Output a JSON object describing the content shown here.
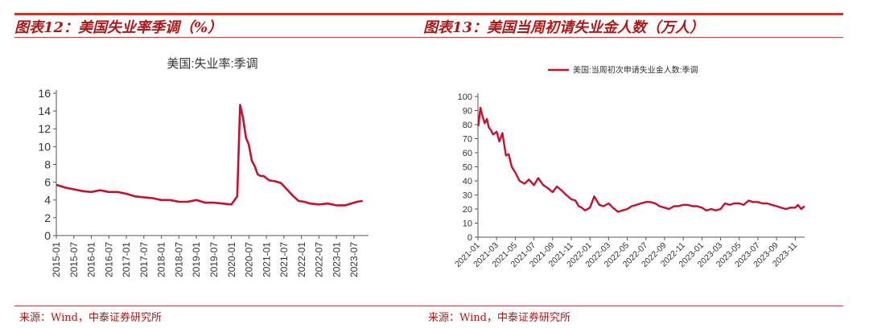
{
  "left": {
    "title": "图表12：美国失业率季调（%）",
    "source": "来源：Wind，中泰证券研究所",
    "chart_data": {
      "type": "line",
      "title": "美国:失业率:季调",
      "xlabel": "",
      "ylabel": "",
      "ylim": [
        0,
        16
      ],
      "yticks": [
        0,
        2,
        4,
        6,
        8,
        10,
        12,
        14,
        16
      ],
      "xlim": [
        "2015-01",
        "2023-12"
      ],
      "xticks": [
        "2015-01",
        "2015-07",
        "2016-01",
        "2016-07",
        "2017-01",
        "2017-07",
        "2018-01",
        "2018-07",
        "2019-01",
        "2019-07",
        "2020-01",
        "2020-07",
        "2021-01",
        "2021-07",
        "2022-01",
        "2022-07",
        "2023-01",
        "2023-07"
      ],
      "grid": false,
      "legend": "none",
      "color": "#c8102e",
      "series": [
        {
          "name": "",
          "x": [
            "2015-01",
            "2015-04",
            "2015-07",
            "2015-10",
            "2016-01",
            "2016-04",
            "2016-07",
            "2016-10",
            "2017-01",
            "2017-04",
            "2017-07",
            "2017-10",
            "2018-01",
            "2018-04",
            "2018-07",
            "2018-10",
            "2019-01",
            "2019-04",
            "2019-07",
            "2019-10",
            "2020-01",
            "2020-03",
            "2020-04",
            "2020-05",
            "2020-06",
            "2020-07",
            "2020-08",
            "2020-09",
            "2020-10",
            "2020-11",
            "2020-12",
            "2021-02",
            "2021-04",
            "2021-06",
            "2021-08",
            "2021-10",
            "2021-12",
            "2022-02",
            "2022-04",
            "2022-07",
            "2022-10",
            "2023-01",
            "2023-04",
            "2023-06",
            "2023-08",
            "2023-10"
          ],
          "y": [
            5.7,
            5.4,
            5.2,
            5.0,
            4.9,
            5.1,
            4.9,
            4.9,
            4.7,
            4.4,
            4.3,
            4.2,
            4.0,
            4.0,
            3.8,
            3.8,
            4.0,
            3.7,
            3.7,
            3.6,
            3.5,
            4.4,
            14.7,
            13.2,
            11.0,
            10.2,
            8.4,
            7.8,
            6.9,
            6.7,
            6.7,
            6.2,
            6.1,
            5.9,
            5.2,
            4.5,
            3.9,
            3.8,
            3.6,
            3.5,
            3.6,
            3.4,
            3.4,
            3.6,
            3.8,
            3.9
          ]
        }
      ]
    }
  },
  "right": {
    "title": "图表13：美国当周初请失业金人数（万人）",
    "source": "来源：Wind，中泰证券研究所",
    "chart_data": {
      "type": "line",
      "title": "",
      "xlabel": "",
      "ylabel": "",
      "ylim": [
        0,
        100
      ],
      "yticks": [
        0,
        10,
        20,
        30,
        40,
        50,
        60,
        70,
        80,
        90,
        100
      ],
      "xlim": [
        "2021-01",
        "2023-12"
      ],
      "xticks": [
        "2021-01",
        "2021-03",
        "2021-05",
        "2021-07",
        "2021-09",
        "2021-11",
        "2022-01",
        "2022-03",
        "2022-05",
        "2022-07",
        "2022-09",
        "2022-11",
        "2023-01",
        "2023-03",
        "2023-05",
        "2023-07",
        "2023-09",
        "2023-11"
      ],
      "grid": false,
      "legend": "top-center",
      "color": "#c8102e",
      "series": [
        {
          "name": "美国:当周初次申请失业金人数:季调",
          "x": [
            "2021-01-02",
            "2021-01-09",
            "2021-01-16",
            "2021-01-23",
            "2021-01-30",
            "2021-02-06",
            "2021-02-13",
            "2021-02-20",
            "2021-03-01",
            "2021-03-10",
            "2021-03-20",
            "2021-04-01",
            "2021-04-10",
            "2021-04-20",
            "2021-05-01",
            "2021-05-15",
            "2021-06-01",
            "2021-06-15",
            "2021-07-01",
            "2021-07-15",
            "2021-08-01",
            "2021-08-15",
            "2021-09-01",
            "2021-09-15",
            "2021-10-01",
            "2021-10-15",
            "2021-11-01",
            "2021-11-15",
            "2021-11-25",
            "2021-12-05",
            "2021-12-15",
            "2022-01-01",
            "2022-01-15",
            "2022-02-01",
            "2022-02-15",
            "2022-03-01",
            "2022-03-15",
            "2022-04-01",
            "2022-04-15",
            "2022-05-01",
            "2022-05-15",
            "2022-06-01",
            "2022-06-15",
            "2022-07-01",
            "2022-07-15",
            "2022-08-01",
            "2022-08-15",
            "2022-09-01",
            "2022-09-15",
            "2022-10-01",
            "2022-10-15",
            "2022-11-01",
            "2022-11-15",
            "2022-12-01",
            "2022-12-15",
            "2023-01-01",
            "2023-01-15",
            "2023-02-01",
            "2023-02-15",
            "2023-03-01",
            "2023-03-15",
            "2023-04-01",
            "2023-04-15",
            "2023-05-01",
            "2023-05-15",
            "2023-06-01",
            "2023-06-15",
            "2023-07-01",
            "2023-07-15",
            "2023-08-01",
            "2023-08-15",
            "2023-09-01",
            "2023-09-15",
            "2023-10-01",
            "2023-10-15",
            "2023-11-01",
            "2023-11-10",
            "2023-11-20",
            "2023-12-01"
          ],
          "y": [
            79,
            92,
            86,
            81,
            84,
            78,
            76,
            73,
            75,
            68,
            74,
            58,
            59,
            50,
            46,
            40,
            38,
            41,
            37,
            42,
            37,
            35,
            32,
            36,
            33,
            30,
            27,
            26,
            22,
            21,
            19,
            21,
            29,
            23,
            22,
            24,
            21,
            18,
            19,
            20,
            22,
            23,
            24,
            25,
            25,
            24,
            22,
            21,
            20,
            22,
            22,
            23,
            23,
            22,
            22,
            21,
            19,
            20,
            19,
            20,
            24,
            23,
            24,
            24,
            23,
            26,
            25,
            25,
            24,
            24,
            23,
            22,
            21,
            20,
            21,
            21,
            23,
            20,
            22
          ]
        }
      ]
    }
  }
}
